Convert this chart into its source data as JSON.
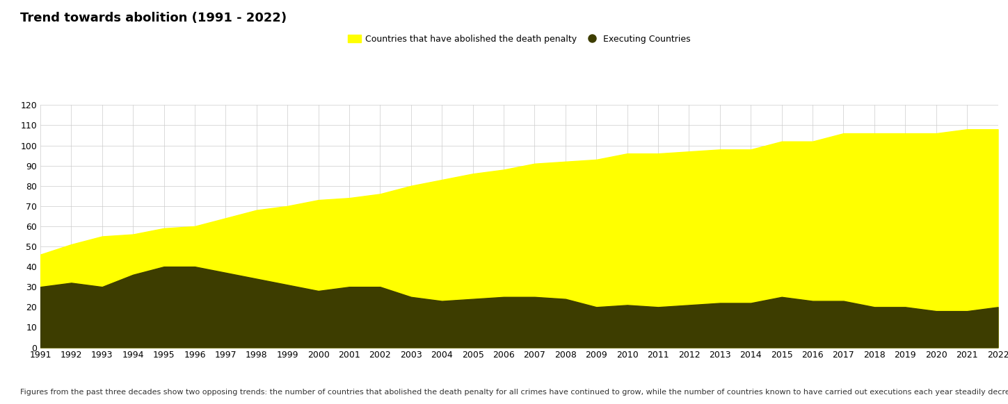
{
  "title": "Trend towards abolition (1991 - 2022)",
  "years": [
    1991,
    1992,
    1993,
    1994,
    1995,
    1996,
    1997,
    1998,
    1999,
    2000,
    2001,
    2002,
    2003,
    2004,
    2005,
    2006,
    2007,
    2008,
    2009,
    2010,
    2011,
    2012,
    2013,
    2014,
    2015,
    2016,
    2017,
    2018,
    2019,
    2020,
    2021,
    2022
  ],
  "abolished": [
    46,
    51,
    55,
    56,
    59,
    60,
    64,
    68,
    70,
    73,
    74,
    76,
    80,
    83,
    86,
    88,
    91,
    92,
    93,
    96,
    96,
    97,
    98,
    98,
    102,
    102,
    106,
    106,
    106,
    106,
    108,
    108
  ],
  "executing": [
    30,
    32,
    30,
    36,
    40,
    40,
    37,
    34,
    31,
    28,
    30,
    30,
    25,
    23,
    24,
    25,
    25,
    24,
    20,
    21,
    20,
    21,
    22,
    22,
    25,
    23,
    23,
    20,
    20,
    18,
    18,
    20
  ],
  "abolished_color": "#ffff00",
  "executing_color": "#3d3d00",
  "background_color": "#ffffff",
  "grid_color": "#cccccc",
  "legend_abolished": "Countries that have abolished the death penalty",
  "legend_executing": "Executing Countries",
  "footnote": "Figures from the past three decades show two opposing trends: the number of countries that abolished the death penalty for all crimes have continued to grow, while the number of countries known to have carried out executions each year steadily decreased.",
  "ylim": [
    0,
    120
  ],
  "yticks": [
    0,
    10,
    20,
    30,
    40,
    50,
    60,
    70,
    80,
    90,
    100,
    110,
    120
  ],
  "title_fontsize": 13,
  "legend_fontsize": 9,
  "tick_fontsize": 9,
  "footnote_fontsize": 8
}
